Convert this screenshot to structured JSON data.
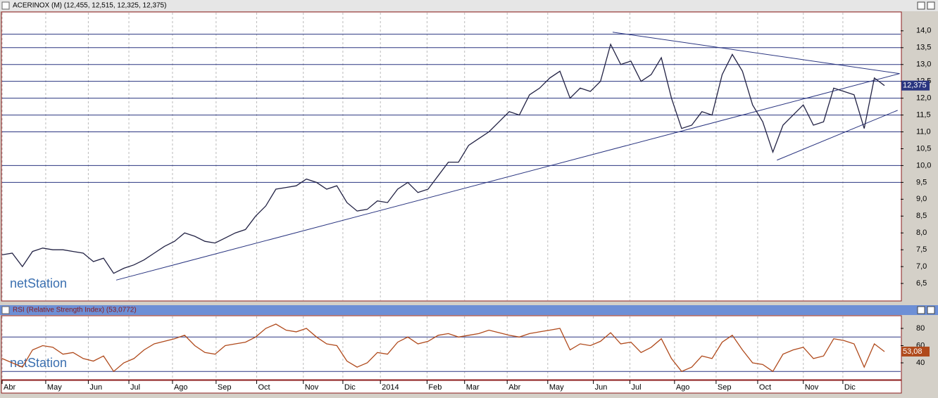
{
  "watermark": "netStation",
  "chart_data": [
    {
      "type": "line",
      "title": "ACERINOX (M) (12,455, 12,515, 12,325, 12,375)",
      "color": "#222244",
      "values": [
        7.35,
        7.4,
        7.0,
        7.45,
        7.55,
        7.5,
        7.5,
        7.45,
        7.4,
        7.15,
        7.25,
        6.8,
        6.95,
        7.05,
        7.2,
        7.4,
        7.6,
        7.75,
        8.0,
        7.9,
        7.75,
        7.7,
        7.85,
        8.0,
        8.1,
        8.5,
        8.8,
        9.3,
        9.35,
        9.4,
        9.6,
        9.5,
        9.3,
        9.4,
        8.9,
        8.65,
        8.7,
        8.95,
        8.9,
        9.3,
        9.5,
        9.2,
        9.3,
        9.7,
        10.1,
        10.1,
        10.6,
        10.8,
        11.0,
        11.3,
        11.6,
        11.5,
        12.1,
        12.3,
        12.6,
        12.8,
        12.0,
        12.3,
        12.2,
        12.5,
        13.6,
        13.0,
        13.1,
        12.5,
        12.7,
        13.2,
        12.0,
        11.1,
        11.2,
        11.6,
        11.5,
        12.7,
        13.3,
        12.8,
        11.8,
        11.3,
        10.4,
        11.2,
        11.5,
        11.8,
        11.2,
        11.3,
        12.3,
        12.2,
        12.1,
        11.1,
        12.6,
        12.375
      ],
      "xlim": [
        0,
        88.6
      ],
      "ylim": [
        5.98,
        14.56
      ],
      "yticks": [
        {
          "value": 6.5,
          "label": "6,5"
        },
        {
          "value": 7.0,
          "label": "7,0"
        },
        {
          "value": 7.5,
          "label": "7,5"
        },
        {
          "value": 8.0,
          "label": "8,0"
        },
        {
          "value": 8.5,
          "label": "8,5"
        },
        {
          "value": 9.0,
          "label": "9,0"
        },
        {
          "value": 9.5,
          "label": "9,5"
        },
        {
          "value": 10.0,
          "label": "10,0"
        },
        {
          "value": 10.5,
          "label": "10,5"
        },
        {
          "value": 11.0,
          "label": "11,0"
        },
        {
          "value": 11.5,
          "label": "11,5"
        },
        {
          "value": 12.0,
          "label": "12,0"
        },
        {
          "value": 12.5,
          "label": "12,5"
        },
        {
          "value": 13.0,
          "label": "13,0"
        },
        {
          "value": 13.5,
          "label": "13,5"
        },
        {
          "value": 14.0,
          "label": "14,0"
        }
      ],
      "hlines": [
        13.9,
        13.5,
        13.0,
        12.5,
        12.0,
        11.5,
        11.0,
        10.0,
        9.5
      ],
      "trendlines": [
        [
          11.25,
          6.6,
          88.5,
          12.73
        ],
        [
          60.2,
          13.96,
          88.5,
          12.73
        ],
        [
          76.4,
          10.16,
          88.3,
          11.64
        ]
      ],
      "last_value": {
        "value": 12.375,
        "label": "12,375"
      }
    },
    {
      "type": "line",
      "title": "RSI (Relative Strength Index) (53,0772)",
      "color": "#b04a1c",
      "values": [
        45,
        40,
        35,
        55,
        60,
        58,
        50,
        52,
        45,
        42,
        48,
        30,
        40,
        45,
        55,
        62,
        65,
        68,
        72,
        60,
        52,
        50,
        60,
        62,
        64,
        70,
        80,
        85,
        78,
        76,
        80,
        70,
        62,
        60,
        42,
        35,
        40,
        52,
        50,
        64,
        70,
        62,
        65,
        72,
        74,
        70,
        72,
        74,
        78,
        75,
        72,
        70,
        74,
        76,
        78,
        80,
        55,
        62,
        60,
        65,
        75,
        62,
        64,
        52,
        58,
        68,
        45,
        30,
        35,
        48,
        45,
        64,
        72,
        55,
        40,
        38,
        30,
        50,
        55,
        58,
        45,
        48,
        68,
        66,
        62,
        35,
        62,
        53.08
      ],
      "xlim": [
        0,
        88.6
      ],
      "ylim": [
        20.4,
        94.7
      ],
      "yticks": [
        40,
        60,
        80
      ],
      "hlines": [
        70,
        30
      ],
      "last_value": {
        "value": 53.08,
        "label": "53,08"
      },
      "xticks": [
        {
          "value": 0,
          "label": "Abr"
        },
        {
          "value": 4.3,
          "label": "May"
        },
        {
          "value": 8.5,
          "label": "Jun"
        },
        {
          "value": 12.5,
          "label": "Jul"
        },
        {
          "value": 16.8,
          "label": "Ago"
        },
        {
          "value": 21.1,
          "label": "Sep"
        },
        {
          "value": 25.1,
          "label": "Oct"
        },
        {
          "value": 29.7,
          "label": "Nov"
        },
        {
          "value": 33.6,
          "label": "Dic"
        },
        {
          "value": 37.3,
          "label": "2014"
        },
        {
          "value": 41.9,
          "label": "Feb"
        },
        {
          "value": 45.6,
          "label": "Mar"
        },
        {
          "value": 49.8,
          "label": "Abr"
        },
        {
          "value": 53.8,
          "label": "May"
        },
        {
          "value": 58.3,
          "label": "Jun"
        },
        {
          "value": 61.9,
          "label": "Jul"
        },
        {
          "value": 66.3,
          "label": "Ago"
        },
        {
          "value": 70.4,
          "label": "Sep"
        },
        {
          "value": 74.5,
          "label": "Oct"
        },
        {
          "value": 79.0,
          "label": "Nov"
        },
        {
          "value": 82.9,
          "label": "Dic"
        }
      ]
    }
  ]
}
